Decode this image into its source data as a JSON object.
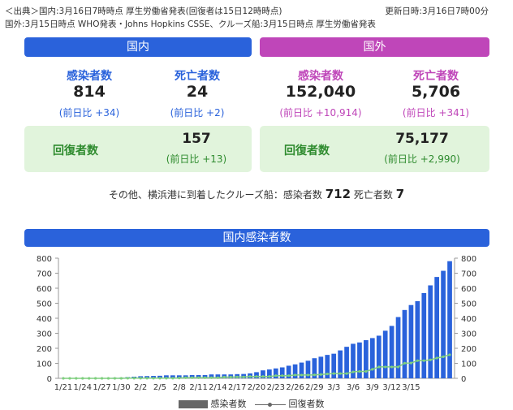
{
  "source": {
    "line1": "＜出典＞国内:3月16日7時時点 厚生労働省発表(回復者は15日12時時点)",
    "line2": "国外:3月15日時点 WHO発表・Johns Hopkins CSSE、クルーズ船:3月15日時点 厚生労働省発表",
    "updated": "更新日時:3月16日7時00分"
  },
  "domestic": {
    "header": "国内",
    "infected_label": "感染者数",
    "infected": "814",
    "infected_diff": "(前日比 +34)",
    "deaths_label": "死亡者数",
    "deaths": "24",
    "deaths_diff": "(前日比 +2)",
    "recovered_label": "回復者数",
    "recovered": "157",
    "recovered_diff": "(前日比 +13)"
  },
  "overseas": {
    "header": "国外",
    "infected_label": "感染者数",
    "infected": "152,040",
    "infected_diff": "(前日比 +10,914)",
    "deaths_label": "死亡者数",
    "deaths": "5,706",
    "deaths_diff": "(前日比 +341)",
    "recovered_label": "回復者数",
    "recovered": "75,177",
    "recovered_diff": "(前日比 +2,990)"
  },
  "cruise_note": {
    "prefix": "その他、横浜港に到着したクルーズ船：感染者数",
    "infected": "712",
    "mid": "死亡者数",
    "deaths": "7"
  },
  "colors": {
    "domestic": "#2a62db",
    "overseas": "#bf46b9",
    "recovered_text": "#2e8b2e",
    "recovered_line": "#7fcf7f",
    "bar": "#2a62db"
  },
  "chart_data": {
    "type": "bar",
    "title": "国内感染者数",
    "ylim": [
      0,
      800
    ],
    "yticks": [
      "0",
      "100",
      "200",
      "300",
      "400",
      "500",
      "600",
      "700",
      "800"
    ],
    "xtick_labels": [
      "1/21",
      "1/24",
      "1/27",
      "1/30",
      "2/2",
      "2/5",
      "2/8",
      "2/11",
      "2/14",
      "2/17",
      "2/20",
      "2/23",
      "2/26",
      "2/29",
      "3/3",
      "3/6",
      "3/9",
      "3/12",
      "3/15"
    ],
    "legend": [
      "感染者数",
      "回復者数"
    ],
    "series": [
      {
        "name": "感染者数",
        "type": "bar",
        "values": [
          0,
          0,
          0,
          1,
          1,
          2,
          2,
          3,
          4,
          5,
          8,
          11,
          14,
          15,
          16,
          17,
          20,
          20,
          20,
          20,
          22,
          22,
          22,
          26,
          26,
          26,
          26,
          28,
          29,
          33,
          41,
          53,
          59,
          66,
          73,
          84,
          93,
          105,
          117,
          134,
          144,
          156,
          164,
          186,
          210,
          230,
          239,
          254,
          268,
          284,
          317,
          349,
          408,
          455,
          488,
          514,
          568,
          619,
          675,
          716,
          780
        ]
      },
      {
        "name": "回復者数",
        "type": "line",
        "values": [
          0,
          0,
          0,
          0,
          0,
          0,
          0,
          0,
          0,
          0,
          1,
          1,
          1,
          1,
          1,
          1,
          1,
          1,
          2,
          4,
          4,
          4,
          4,
          4,
          4,
          8,
          8,
          9,
          9,
          12,
          12,
          12,
          12,
          18,
          18,
          18,
          22,
          22,
          22,
          23,
          26,
          29,
          32,
          32,
          32,
          43,
          46,
          46,
          60,
          76,
          76,
          76,
          76,
          101,
          102,
          118,
          118,
          123,
          135,
          144,
          157
        ]
      }
    ]
  }
}
